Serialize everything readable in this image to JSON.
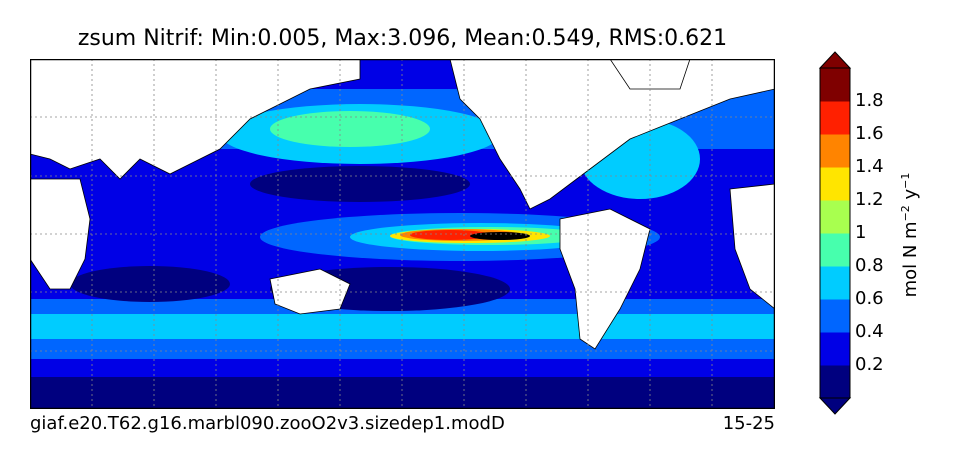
{
  "title": "zsum Nitrif: Min:0.005, Max:3.096, Mean:0.549, RMS:0.621",
  "footer": {
    "case_name": "giaf.e20.T62.g16.marbl090.zooO2v3.sizedep1.modD",
    "years": "15-25"
  },
  "colorbar": {
    "units_main": "mol N m",
    "units_exp1": "−2",
    "units_mid": " y",
    "units_exp2": "−1",
    "ticks": [
      "0.2",
      "0.4",
      "0.6",
      "0.8",
      "1",
      "1.2",
      "1.4",
      "1.6",
      "1.8"
    ],
    "colors": [
      "#00007f",
      "#0000e6",
      "#0066ff",
      "#00ccff",
      "#47ffad",
      "#a8ff4f",
      "#ffe500",
      "#ff8400",
      "#ff2000",
      "#7f0000"
    ]
  },
  "map_colors": {
    "land": "#ffffff",
    "grid": "#888888"
  }
}
